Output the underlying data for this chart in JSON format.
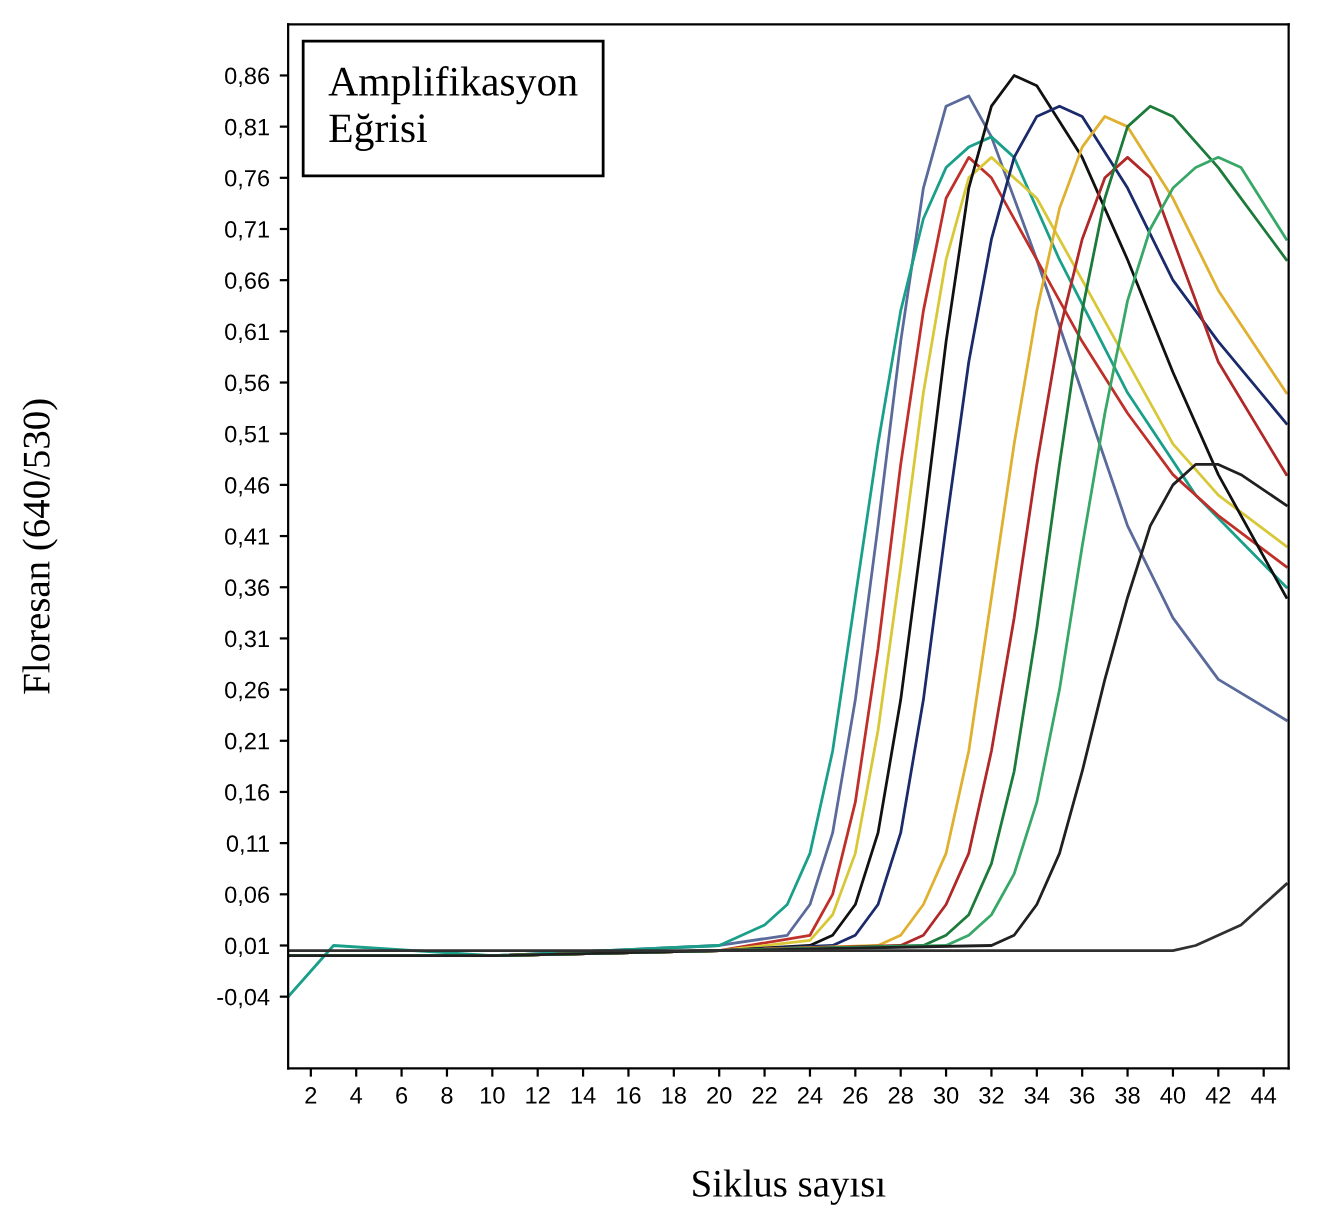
{
  "chart_data": {
    "type": "line",
    "xlabel": "Siklus sayısı",
    "ylabel": "Floresan (640/530)",
    "annotations": [
      "Amplifikasyon\nEğrisi"
    ],
    "xlim": [
      1,
      45.1
    ],
    "ylim": [
      -0.11,
      0.91
    ],
    "xticks": [
      2,
      4,
      6,
      8,
      10,
      12,
      14,
      16,
      18,
      20,
      22,
      24,
      26,
      28,
      30,
      32,
      34,
      36,
      38,
      40,
      42,
      44
    ],
    "yticks": [
      {
        "value": -0.04,
        "label": "-0,04"
      },
      {
        "value": 0.01,
        "label": "0,01"
      },
      {
        "value": 0.06,
        "label": "0,06"
      },
      {
        "value": 0.11,
        "label": "0,11"
      },
      {
        "value": 0.16,
        "label": "0,16"
      },
      {
        "value": 0.21,
        "label": "0,21"
      },
      {
        "value": 0.26,
        "label": "0,26"
      },
      {
        "value": 0.31,
        "label": "0,31"
      },
      {
        "value": 0.36,
        "label": "0,36"
      },
      {
        "value": 0.41,
        "label": "0,41"
      },
      {
        "value": 0.46,
        "label": "0,46"
      },
      {
        "value": 0.51,
        "label": "0,51"
      },
      {
        "value": 0.56,
        "label": "0,56"
      },
      {
        "value": 0.61,
        "label": "0,61"
      },
      {
        "value": 0.66,
        "label": "0,66"
      },
      {
        "value": 0.71,
        "label": "0,71"
      },
      {
        "value": 0.76,
        "label": "0,76"
      },
      {
        "value": 0.81,
        "label": "0,81"
      },
      {
        "value": 0.86,
        "label": "0,86"
      }
    ],
    "grid": false,
    "legend": false,
    "marker": "none",
    "line_style": "solid",
    "series": [
      {
        "color": "#5a6a9a",
        "x": [
          1,
          10,
          20,
          23,
          24,
          25,
          26,
          27,
          28,
          29,
          30,
          31,
          32,
          34,
          36,
          38,
          40,
          42,
          45
        ],
        "values": [
          0.0,
          0.0,
          0.01,
          0.02,
          0.05,
          0.12,
          0.25,
          0.42,
          0.6,
          0.75,
          0.83,
          0.84,
          0.8,
          0.68,
          0.55,
          0.42,
          0.33,
          0.27,
          0.23
        ]
      },
      {
        "color": "#1aa08a",
        "x": [
          1,
          3,
          10,
          20,
          22,
          23,
          24,
          25,
          26,
          27,
          28,
          29,
          30,
          31,
          32,
          33,
          35,
          38,
          41,
          45
        ],
        "values": [
          -0.04,
          0.01,
          0.0,
          0.01,
          0.03,
          0.05,
          0.1,
          0.2,
          0.35,
          0.5,
          0.63,
          0.72,
          0.77,
          0.79,
          0.8,
          0.78,
          0.68,
          0.55,
          0.45,
          0.36
        ]
      },
      {
        "color": "#c0302a",
        "x": [
          1,
          10,
          20,
          24,
          25,
          26,
          27,
          28,
          29,
          30,
          31,
          32,
          34,
          36,
          38,
          40,
          42,
          45
        ],
        "values": [
          0.0,
          0.0,
          0.005,
          0.02,
          0.06,
          0.15,
          0.3,
          0.48,
          0.63,
          0.74,
          0.78,
          0.76,
          0.68,
          0.6,
          0.53,
          0.47,
          0.43,
          0.38
        ]
      },
      {
        "color": "#d8c838",
        "x": [
          1,
          10,
          20,
          24,
          25,
          26,
          27,
          28,
          29,
          30,
          31,
          32,
          34,
          36,
          38,
          40,
          42,
          45
        ],
        "values": [
          0.0,
          0.0,
          0.005,
          0.015,
          0.04,
          0.1,
          0.22,
          0.38,
          0.55,
          0.68,
          0.76,
          0.78,
          0.74,
          0.66,
          0.58,
          0.5,
          0.45,
          0.4
        ]
      },
      {
        "color": "#111111",
        "x": [
          1,
          10,
          20,
          24,
          25,
          26,
          27,
          28,
          29,
          30,
          31,
          32,
          33,
          34,
          36,
          38,
          40,
          42,
          45
        ],
        "values": [
          0.0,
          0.0,
          0.005,
          0.01,
          0.02,
          0.05,
          0.12,
          0.25,
          0.42,
          0.6,
          0.75,
          0.83,
          0.86,
          0.85,
          0.78,
          0.68,
          0.57,
          0.47,
          0.35
        ]
      },
      {
        "color": "#1a2a6a",
        "x": [
          1,
          10,
          20,
          25,
          26,
          27,
          28,
          29,
          30,
          31,
          32,
          33,
          34,
          35,
          36,
          38,
          40,
          42,
          45
        ],
        "values": [
          0.0,
          0.0,
          0.005,
          0.01,
          0.02,
          0.05,
          0.12,
          0.25,
          0.42,
          0.58,
          0.7,
          0.78,
          0.82,
          0.83,
          0.82,
          0.75,
          0.66,
          0.6,
          0.52
        ]
      },
      {
        "color": "#e0b030",
        "x": [
          1,
          10,
          20,
          27,
          28,
          29,
          30,
          31,
          32,
          33,
          34,
          35,
          36,
          37,
          38,
          40,
          42,
          45
        ],
        "values": [
          0.0,
          0.0,
          0.005,
          0.01,
          0.02,
          0.05,
          0.1,
          0.2,
          0.35,
          0.5,
          0.63,
          0.73,
          0.79,
          0.82,
          0.81,
          0.74,
          0.65,
          0.55
        ]
      },
      {
        "color": "#b02828",
        "x": [
          1,
          10,
          20,
          28,
          29,
          30,
          31,
          32,
          33,
          34,
          35,
          36,
          37,
          38,
          39,
          40,
          42,
          45
        ],
        "values": [
          0.0,
          0.0,
          0.005,
          0.01,
          0.02,
          0.05,
          0.1,
          0.2,
          0.33,
          0.48,
          0.61,
          0.7,
          0.76,
          0.78,
          0.76,
          0.7,
          0.58,
          0.47
        ]
      },
      {
        "color": "#1c7a3a",
        "x": [
          1,
          10,
          20,
          29,
          30,
          31,
          32,
          33,
          34,
          35,
          36,
          37,
          38,
          39,
          40,
          42,
          45
        ],
        "values": [
          0.0,
          0.0,
          0.005,
          0.01,
          0.02,
          0.04,
          0.09,
          0.18,
          0.32,
          0.48,
          0.63,
          0.74,
          0.81,
          0.83,
          0.82,
          0.77,
          0.68
        ]
      },
      {
        "color": "#38a868",
        "x": [
          1,
          10,
          20,
          30,
          31,
          32,
          33,
          34,
          35,
          36,
          37,
          38,
          39,
          40,
          41,
          42,
          43,
          45
        ],
        "values": [
          0.0,
          0.0,
          0.005,
          0.01,
          0.02,
          0.04,
          0.08,
          0.15,
          0.26,
          0.4,
          0.53,
          0.64,
          0.71,
          0.75,
          0.77,
          0.78,
          0.77,
          0.7
        ]
      },
      {
        "color": "#202020",
        "x": [
          1,
          10,
          20,
          32,
          33,
          34,
          35,
          36,
          37,
          38,
          39,
          40,
          41,
          42,
          43,
          45
        ],
        "values": [
          0.0,
          0.0,
          0.005,
          0.01,
          0.02,
          0.05,
          0.1,
          0.18,
          0.27,
          0.35,
          0.42,
          0.46,
          0.48,
          0.48,
          0.47,
          0.44
        ]
      },
      {
        "color": "#303030",
        "x": [
          1,
          10,
          20,
          30,
          38,
          40,
          41,
          42,
          43,
          44,
          45
        ],
        "values": [
          0.005,
          0.005,
          0.005,
          0.005,
          0.005,
          0.005,
          0.01,
          0.02,
          0.03,
          0.05,
          0.07
        ]
      }
    ]
  }
}
